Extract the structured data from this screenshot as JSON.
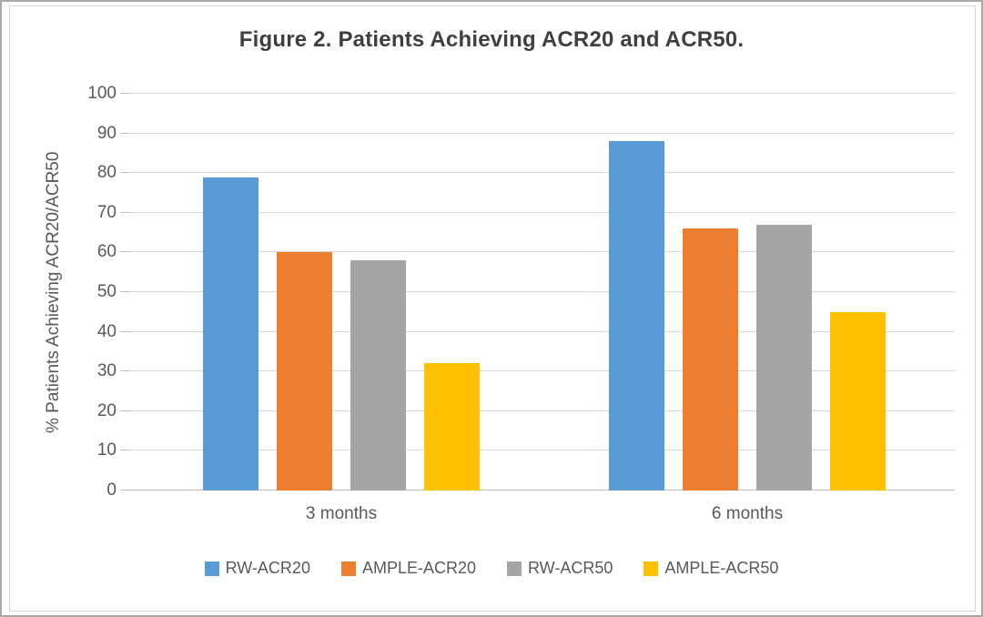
{
  "figure": {
    "title": "Figure 2. Patients Achieving ACR20 and ACR50."
  },
  "chart_data": {
    "type": "bar",
    "title": "Figure 2. Patients Achieving ACR20 and ACR50.",
    "categories": [
      "3 months",
      "6 months"
    ],
    "series": [
      {
        "name": "RW-ACR20",
        "color": "#5B9BD5",
        "values": [
          79,
          88
        ]
      },
      {
        "name": "AMPLE-ACR20",
        "color": "#ED7D31",
        "values": [
          60,
          66
        ]
      },
      {
        "name": "RW-ACR50",
        "color": "#A5A5A5",
        "values": [
          58,
          67
        ]
      },
      {
        "name": "AMPLE-ACR50",
        "color": "#FFC000",
        "values": [
          32,
          45
        ]
      }
    ],
    "xlabel": "",
    "ylabel": "% Patients Achieving ACR20/ACR50",
    "ylim": [
      0,
      100
    ],
    "yticks": [
      0,
      10,
      20,
      30,
      40,
      50,
      60,
      70,
      80,
      90,
      100
    ],
    "grid": true,
    "legend_position": "bottom",
    "colors": {
      "gridline": "#d9d9d9",
      "baseline": "#bfbfbf",
      "tick_text": "#595959",
      "title_text": "#3f3f3f"
    }
  }
}
